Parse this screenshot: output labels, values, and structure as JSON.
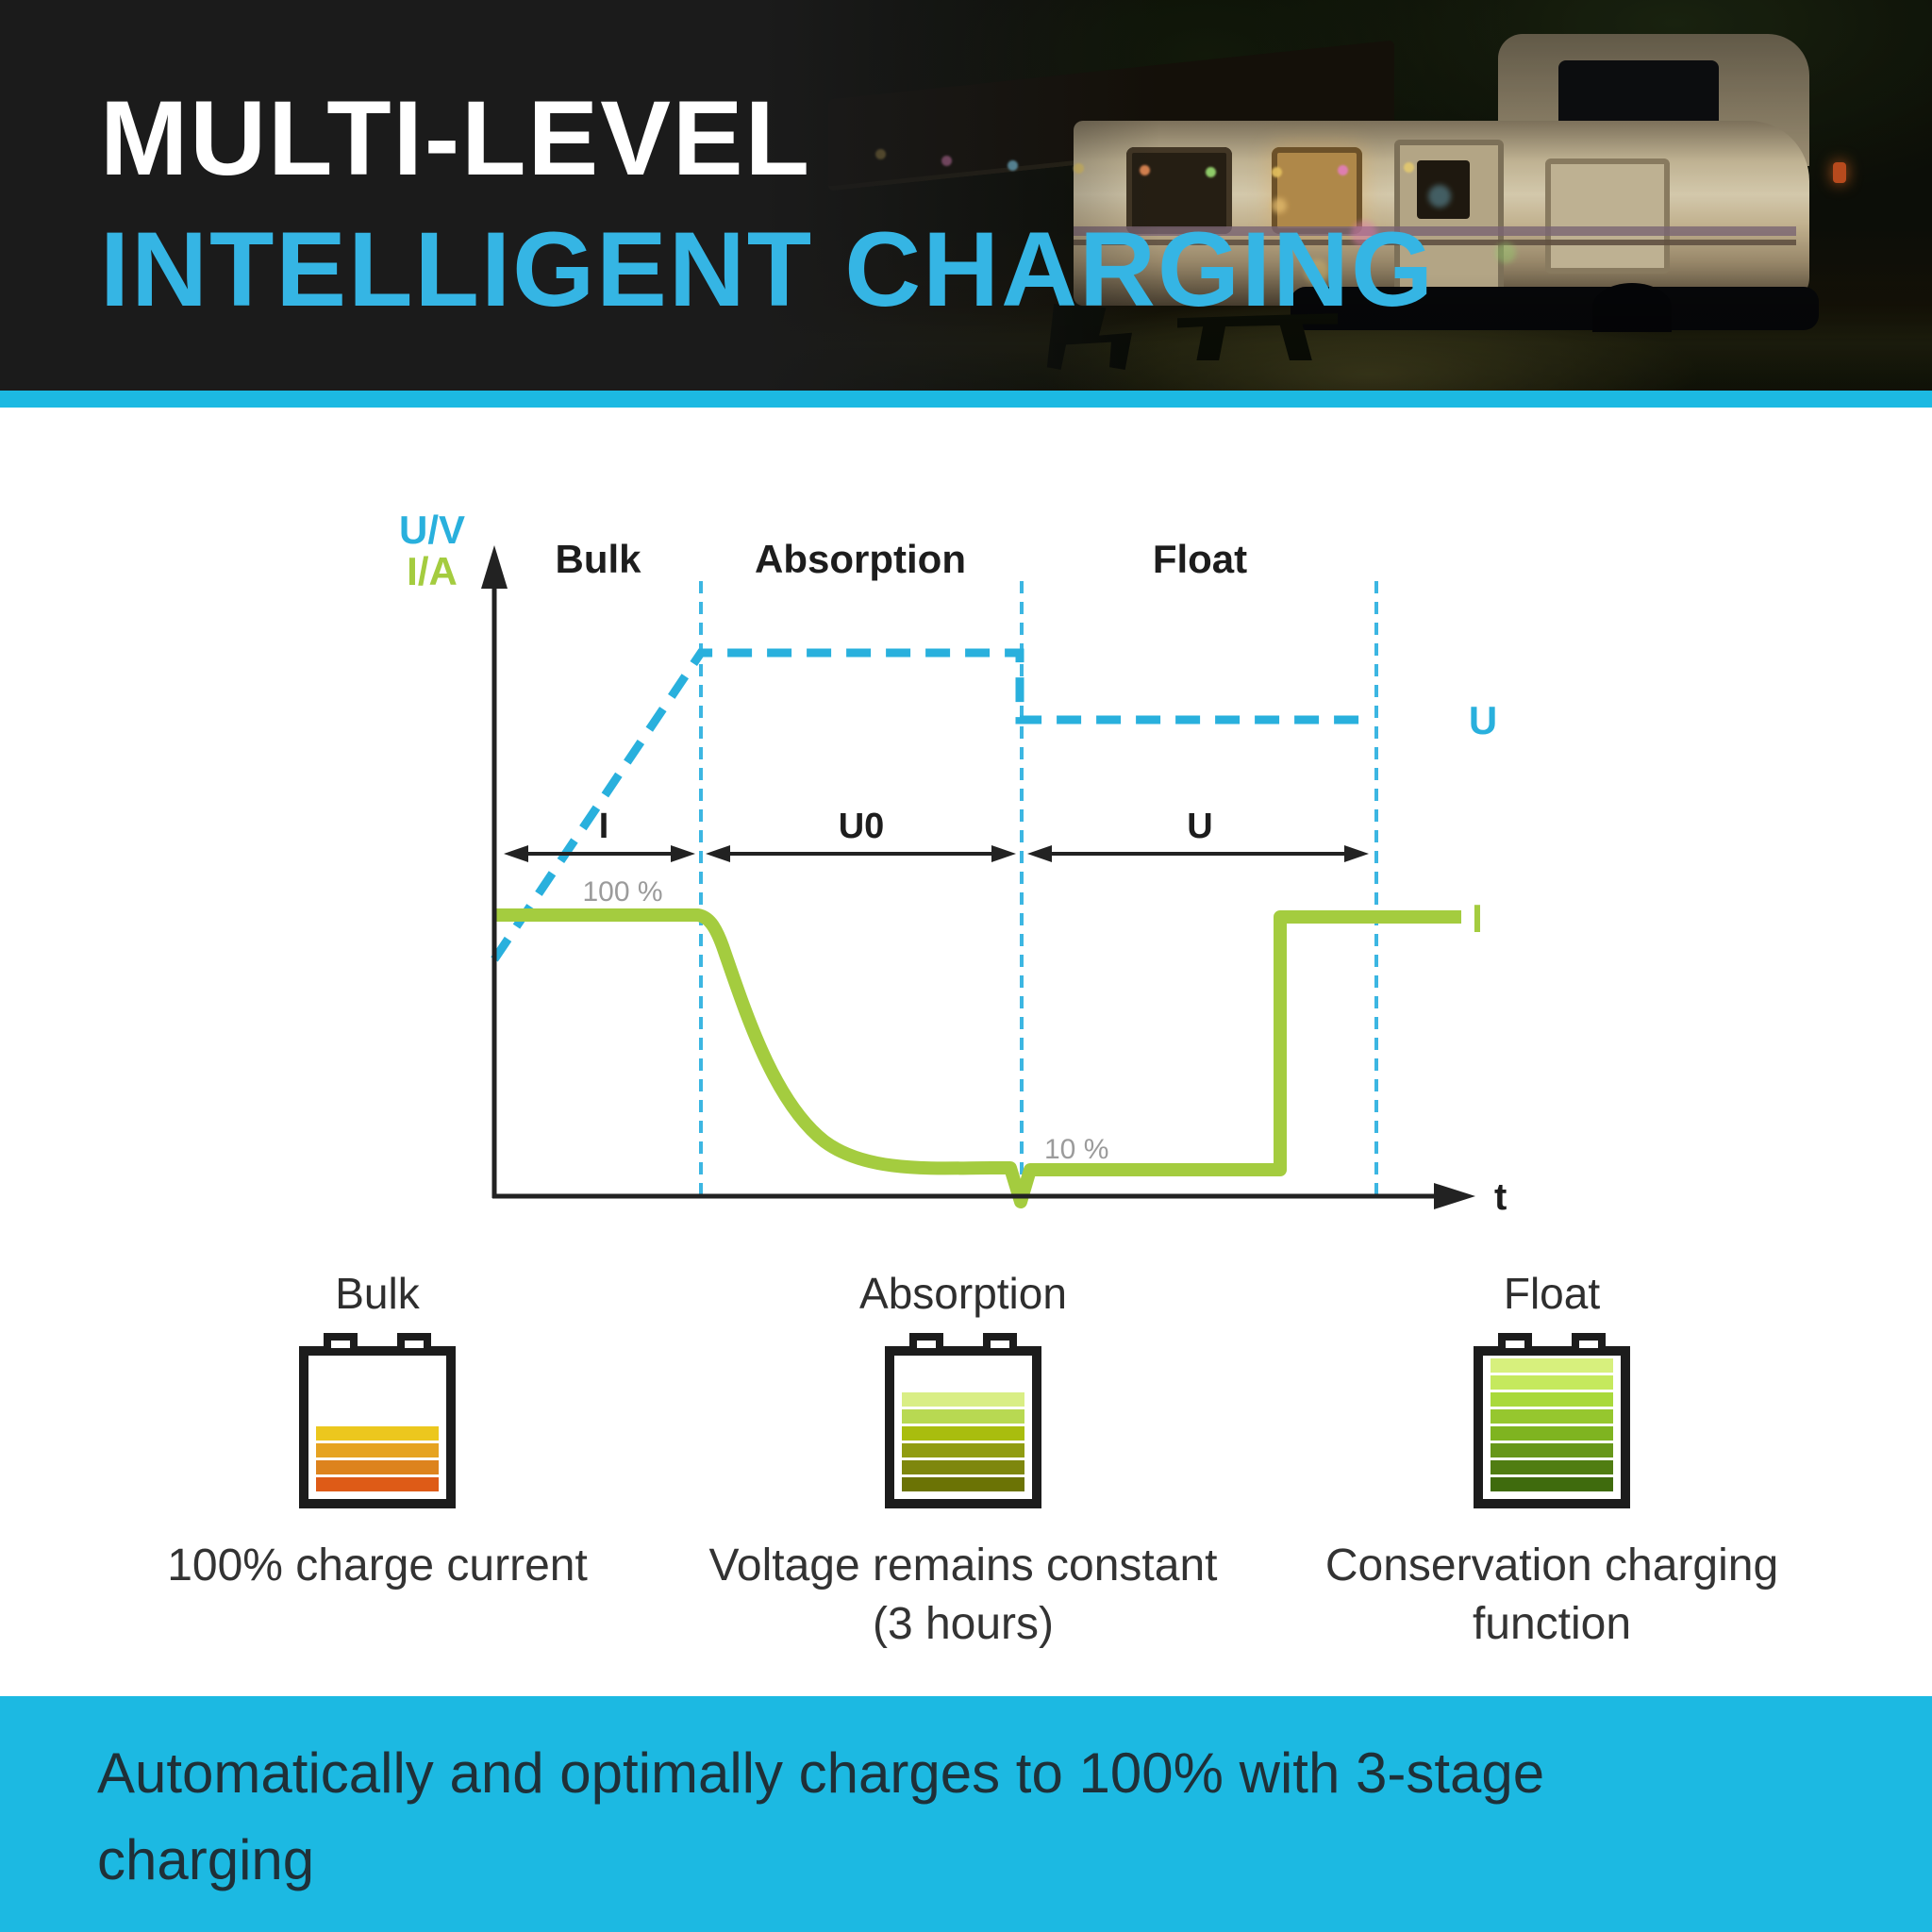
{
  "header": {
    "title_line1": "MULTI-LEVEL",
    "title_line2": "INTELLIGENT CHARGING",
    "accent_color": "#35b5e4",
    "strip_color": "#1cb9e2",
    "background_color": "#1b1b1b",
    "photo_description": "camper trailer at night with awning and string lights"
  },
  "chart": {
    "y_axis_label_voltage": "U/V",
    "y_axis_label_current": "I/A",
    "x_axis_label": "t",
    "phase_labels": [
      "Bulk",
      "Absorption",
      "Float"
    ],
    "dimension_labels": [
      "I",
      "U0",
      "U"
    ],
    "annotation_full": "100 %",
    "annotation_low": "10 %",
    "voltage_line_label": "U",
    "current_line_label": "I",
    "voltage_color": "#29b0dd",
    "current_color": "#a4cc3f",
    "guide_color": "#3cb6e2",
    "axis_color": "#222222",
    "annotation_color": "#9b9b9b"
  },
  "chart_data": {
    "type": "line",
    "title": "3-stage charging profile (Bulk / Absorption / Float)",
    "xlabel": "t",
    "ylabel": "U/V (voltage), I/A (current)",
    "grid": false,
    "axes_qualitative": true,
    "x_range": [
      0,
      10
    ],
    "y_range": [
      0,
      1.15
    ],
    "phases": [
      {
        "name": "Bulk",
        "mode_label": "I",
        "t_range": [
          0,
          2.1
        ]
      },
      {
        "name": "Absorption",
        "mode_label": "U0",
        "t_range": [
          2.1,
          5.4
        ]
      },
      {
        "name": "Float",
        "mode_label": "U",
        "t_range": [
          5.4,
          9.0
        ]
      }
    ],
    "series": [
      {
        "name": "U (voltage)",
        "color": "#29b0dd",
        "line_style": "dashed",
        "points": [
          [
            0,
            0.44
          ],
          [
            2.1,
            1.0
          ],
          [
            5.4,
            1.0
          ],
          [
            5.4,
            0.87
          ],
          [
            9.0,
            0.87
          ]
        ]
      },
      {
        "name": "I (current)",
        "color": "#a4cc3f",
        "line_style": "solid",
        "points": [
          [
            0,
            1.0
          ],
          [
            2.1,
            1.0
          ],
          [
            2.5,
            0.72
          ],
          [
            3.0,
            0.38
          ],
          [
            3.6,
            0.19
          ],
          [
            4.3,
            0.12
          ],
          [
            5.0,
            0.1
          ],
          [
            5.37,
            0.1
          ],
          [
            5.4,
            0.0
          ],
          [
            5.45,
            0.1
          ],
          [
            8.0,
            0.1
          ],
          [
            8.0,
            1.0
          ],
          [
            9.85,
            1.0
          ]
        ]
      }
    ],
    "annotations": [
      {
        "text": "100 %",
        "series": "I (current)",
        "t": 1.3,
        "value": 1.0
      },
      {
        "text": "10 %",
        "series": "I (current)",
        "t": 5.7,
        "value": 0.1
      }
    ],
    "legend_position": "inline labels at right edge (U above, I below)"
  },
  "batteries": [
    {
      "heading": "Bulk",
      "caption": "100% charge current",
      "bars": [
        "#ecc71e",
        "#e6a321",
        "#dd831d",
        "#de5b17"
      ]
    },
    {
      "heading": "Absorption",
      "caption": "Voltage remains constant\n(3 hours)",
      "bars": [
        "#d9ee85",
        "#b8d952",
        "#a9bd0e",
        "#909c12",
        "#7e870d",
        "#6b7305"
      ]
    },
    {
      "heading": "Float",
      "caption": "Conservation charging\nfunction",
      "bars": [
        "#d7f07d",
        "#c5e95d",
        "#a9d93b",
        "#96c72e",
        "#7fb420",
        "#67971a",
        "#507d12",
        "#3f6b0d"
      ]
    }
  ],
  "banner": {
    "text": "Automatically and optimally charges to 100% with 3-stage\ncharging",
    "background_color": "#1cb9e2",
    "text_color": "#1f3038"
  }
}
